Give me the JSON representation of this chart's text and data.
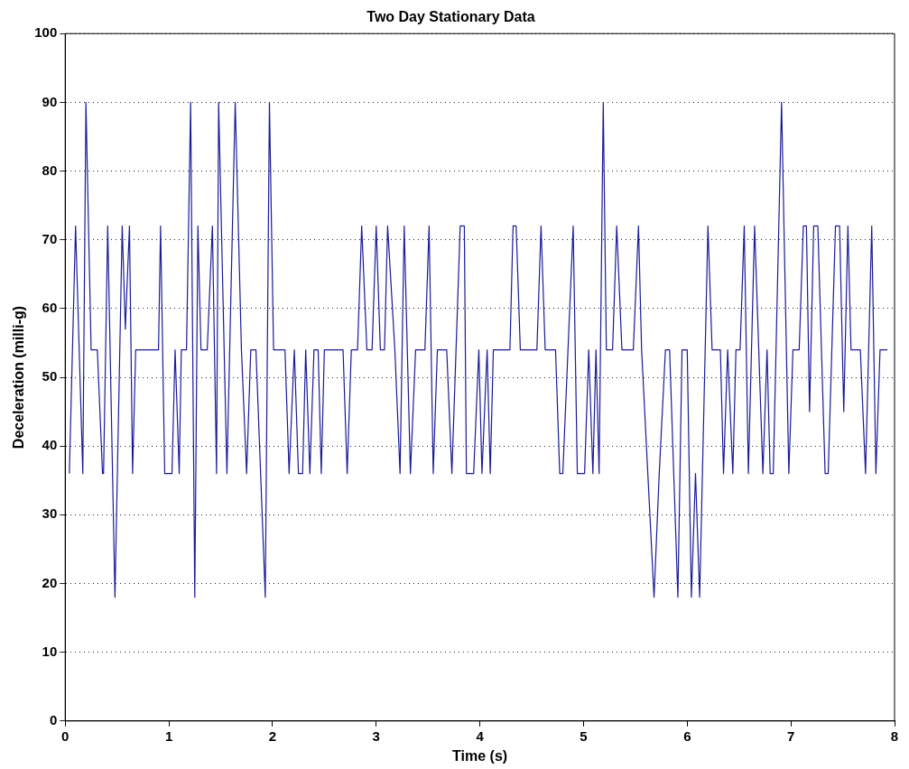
{
  "chart_data": {
    "type": "line",
    "title": "Two Day Stationary Data",
    "xlabel": "Time (s)",
    "ylabel": "Deceleration (milli-g)",
    "xlim": [
      0,
      8
    ],
    "xticks": [
      0,
      1,
      2,
      3,
      4,
      5,
      6,
      7,
      8
    ],
    "ylim": [
      0,
      100
    ],
    "yticks": [
      0,
      10,
      20,
      30,
      40,
      50,
      60,
      70,
      80,
      90,
      100
    ],
    "grid": "y",
    "legend": false,
    "marker": "none",
    "line_style": "solid",
    "series": [
      {
        "color": "#1a1a99",
        "x": [
          0.04,
          0.1,
          0.17,
          0.2,
          0.25,
          0.31,
          0.36,
          0.37,
          0.41,
          0.48,
          0.55,
          0.58,
          0.62,
          0.65,
          0.68,
          0.9,
          0.92,
          0.96,
          1.03,
          1.06,
          1.1,
          1.12,
          1.17,
          1.21,
          1.25,
          1.28,
          1.31,
          1.37,
          1.42,
          1.46,
          1.48,
          1.56,
          1.64,
          1.7,
          1.75,
          1.79,
          1.84,
          1.93,
          1.97,
          2.01,
          2.12,
          2.16,
          2.21,
          2.25,
          2.29,
          2.32,
          2.36,
          2.4,
          2.44,
          2.47,
          2.5,
          2.68,
          2.72,
          2.76,
          2.82,
          2.86,
          2.91,
          2.96,
          3.0,
          3.04,
          3.08,
          3.11,
          3.18,
          3.23,
          3.27,
          3.33,
          3.38,
          3.47,
          3.51,
          3.55,
          3.59,
          3.68,
          3.73,
          3.81,
          3.85,
          3.87,
          3.94,
          3.99,
          4.02,
          4.07,
          4.1,
          4.13,
          4.29,
          4.32,
          4.35,
          4.39,
          4.55,
          4.59,
          4.63,
          4.73,
          4.77,
          4.8,
          4.85,
          4.9,
          4.94,
          5.01,
          5.05,
          5.09,
          5.12,
          5.15,
          5.19,
          5.22,
          5.28,
          5.32,
          5.37,
          5.48,
          5.53,
          5.56,
          5.68,
          5.73,
          5.79,
          5.83,
          5.91,
          5.95,
          6.0,
          6.04,
          6.08,
          6.12,
          6.2,
          6.24,
          6.32,
          6.35,
          6.39,
          6.44,
          6.47,
          6.51,
          6.55,
          6.59,
          6.65,
          6.73,
          6.77,
          6.8,
          6.83,
          6.91,
          6.98,
          7.02,
          7.08,
          7.12,
          7.15,
          7.18,
          7.22,
          7.26,
          7.33,
          7.36,
          7.43,
          7.47,
          7.51,
          7.55,
          7.58,
          7.67,
          7.72,
          7.78,
          7.82,
          7.86,
          7.93
        ],
        "values": [
          36,
          72,
          36,
          90,
          54,
          54,
          36,
          36,
          72,
          18,
          72,
          57,
          72,
          36,
          54,
          54,
          72,
          36,
          36,
          54,
          36,
          54,
          54,
          90,
          18,
          72,
          54,
          54,
          72,
          36,
          90,
          36,
          90,
          54,
          36,
          54,
          54,
          18,
          90,
          54,
          54,
          36,
          54,
          36,
          36,
          54,
          36,
          54,
          54,
          36,
          54,
          54,
          36,
          54,
          54,
          72,
          54,
          54,
          72,
          54,
          54,
          72,
          54,
          36,
          72,
          36,
          54,
          54,
          72,
          36,
          54,
          54,
          36,
          72,
          72,
          36,
          36,
          54,
          36,
          54,
          36,
          54,
          54,
          72,
          72,
          54,
          54,
          72,
          54,
          54,
          36,
          36,
          54,
          72,
          36,
          36,
          54,
          36,
          54,
          36,
          90,
          54,
          54,
          72,
          54,
          54,
          72,
          54,
          18,
          36,
          54,
          54,
          18,
          54,
          54,
          18,
          36,
          18,
          72,
          54,
          54,
          36,
          54,
          36,
          54,
          54,
          72,
          36,
          72,
          36,
          54,
          36,
          36,
          90,
          36,
          54,
          54,
          72,
          72,
          45,
          72,
          72,
          36,
          36,
          72,
          72,
          45,
          72,
          54,
          54,
          36,
          72,
          36,
          54,
          54
        ]
      }
    ]
  }
}
